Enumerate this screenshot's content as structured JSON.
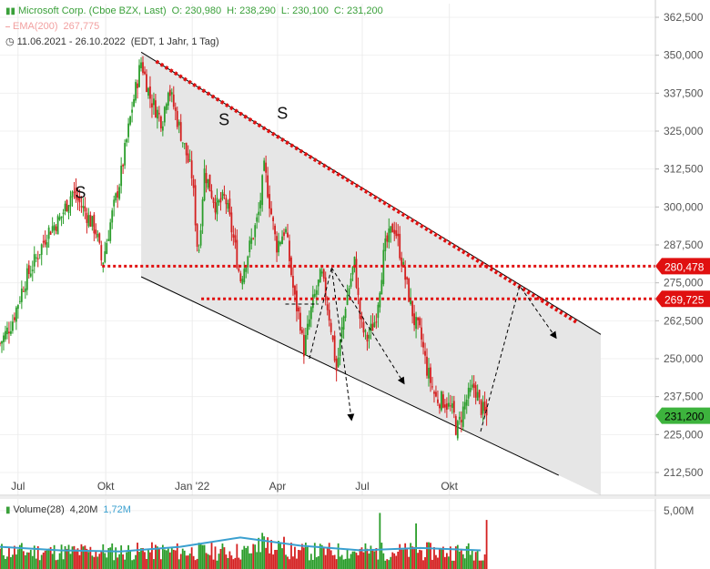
{
  "header": {
    "symbol": "Microsoft Corp. (Cboe BZX, Last)",
    "open": "O: 230,980",
    "high": "H: 238,290",
    "low": "L: 230,100",
    "close": "C: 231,200",
    "ema_label": "EMA(200)",
    "ema_value": "267,775",
    "range": "11.06.2021 - 26.10.2022",
    "range_info": "(EDT, 1 Jahr, 1 Tag)"
  },
  "volume_legend": {
    "label": "Volume(28)",
    "value1": "4,20M",
    "value2": "1,72M"
  },
  "colors": {
    "up": "#2a9d2a",
    "down": "#d42020",
    "level_line": "#e01010",
    "channel_fill": "#e6e6e6",
    "price_badge": "#3db33d",
    "volume_avg": "#3aa0d0",
    "legend_green": "#3aa03a"
  },
  "chart_data": {
    "type": "candlestick",
    "x_ticks": [
      "Jul",
      "Okt",
      "Jan '22",
      "Apr",
      "Jul",
      "Okt"
    ],
    "y_ticks": [
      "362,500",
      "350,000",
      "337,500",
      "325,000",
      "312,500",
      "300,000",
      "287,500",
      "275,000",
      "262,500",
      "250,000",
      "237,500",
      "225,000",
      "212,500"
    ],
    "y_tick_values": [
      362.5,
      350,
      337.5,
      325,
      312.5,
      300,
      287.5,
      275,
      262.5,
      250,
      237.5,
      225,
      212.5
    ],
    "ylim": [
      205,
      367
    ],
    "volume_tick": "5,00M",
    "levels": [
      {
        "label": "280,478",
        "value": 280.478
      },
      {
        "label": "269,725",
        "value": 269.725
      }
    ],
    "last_price": {
      "label": "231,200",
      "value": 231.2
    },
    "annotations": [
      "S",
      "S",
      "S"
    ],
    "price_path": [
      [
        0,
        255
      ],
      [
        0.02,
        262
      ],
      [
        0.04,
        275
      ],
      [
        0.06,
        283
      ],
      [
        0.08,
        292
      ],
      [
        0.1,
        296
      ],
      [
        0.12,
        305
      ],
      [
        0.14,
        299
      ],
      [
        0.16,
        292
      ],
      [
        0.17,
        281
      ],
      [
        0.185,
        296
      ],
      [
        0.2,
        309
      ],
      [
        0.22,
        333
      ],
      [
        0.235,
        348
      ],
      [
        0.25,
        336
      ],
      [
        0.27,
        328
      ],
      [
        0.28,
        340
      ],
      [
        0.3,
        325
      ],
      [
        0.32,
        310
      ],
      [
        0.33,
        283
      ],
      [
        0.34,
        312
      ],
      [
        0.36,
        300
      ],
      [
        0.375,
        303
      ],
      [
        0.39,
        288
      ],
      [
        0.4,
        276
      ],
      [
        0.41,
        283
      ],
      [
        0.43,
        297
      ],
      [
        0.44,
        313
      ],
      [
        0.46,
        287
      ],
      [
        0.475,
        293
      ],
      [
        0.49,
        270
      ],
      [
        0.5,
        262
      ],
      [
        0.505,
        252
      ],
      [
        0.52,
        268
      ],
      [
        0.535,
        278
      ],
      [
        0.55,
        262
      ],
      [
        0.56,
        246
      ],
      [
        0.575,
        268
      ],
      [
        0.59,
        282
      ],
      [
        0.6,
        262
      ],
      [
        0.61,
        256
      ],
      [
        0.625,
        263
      ],
      [
        0.64,
        286
      ],
      [
        0.655,
        294
      ],
      [
        0.66,
        291
      ],
      [
        0.675,
        276
      ],
      [
        0.69,
        262
      ],
      [
        0.7,
        258
      ],
      [
        0.71,
        247
      ],
      [
        0.725,
        237
      ],
      [
        0.74,
        236
      ],
      [
        0.755,
        232
      ],
      [
        0.76,
        226
      ],
      [
        0.775,
        236
      ],
      [
        0.79,
        241
      ],
      [
        0.8,
        234
      ],
      [
        0.81,
        231
      ]
    ],
    "channel": {
      "upper": [
        [
          0.235,
          351
        ],
        [
          1.0,
          258
        ]
      ],
      "lower": [
        [
          0.235,
          277
        ],
        [
          1.0,
          205
        ]
      ]
    },
    "volume_avg": [
      [
        0,
        1.9
      ],
      [
        0.1,
        1.6
      ],
      [
        0.2,
        1.5
      ],
      [
        0.3,
        1.9
      ],
      [
        0.4,
        2.7
      ],
      [
        0.5,
        2.0
      ],
      [
        0.6,
        1.6
      ],
      [
        0.7,
        1.8
      ],
      [
        0.8,
        1.6
      ]
    ]
  }
}
